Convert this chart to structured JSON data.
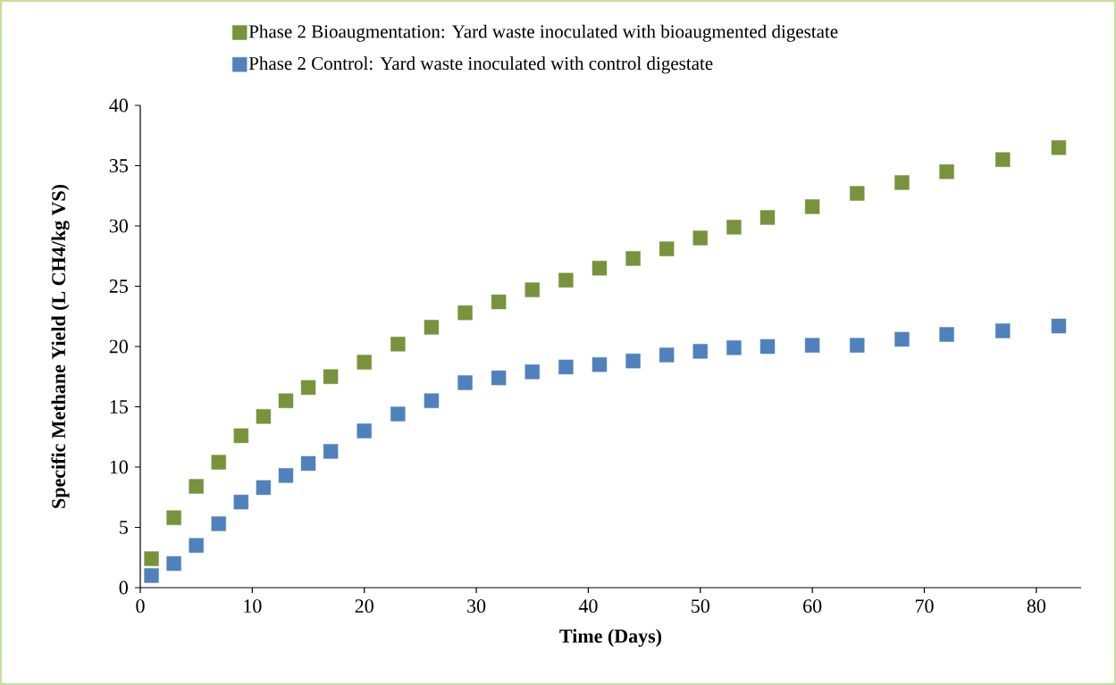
{
  "chart_data": {
    "type": "scatter",
    "xlabel": "Time (Days)",
    "ylabel": "Specific Methane Yield (L CH4/kg VS)",
    "marker": "square",
    "legend": "top",
    "grid": false,
    "xlim": [
      0,
      84
    ],
    "xticks": [
      0,
      10,
      20,
      30,
      40,
      50,
      60,
      70,
      80
    ],
    "ylim": [
      0,
      40
    ],
    "yticks": [
      0,
      5,
      10,
      15,
      20,
      25,
      30,
      35,
      40
    ],
    "series": [
      {
        "name": "Phase 2 Bioaugmentation: Yard waste inoculated with bioaugmented digestate",
        "color": "#77933c",
        "x": [
          1,
          3,
          5,
          7,
          9,
          11,
          13,
          15,
          17,
          20,
          23,
          26,
          29,
          32,
          35,
          38,
          41,
          44,
          47,
          50,
          53,
          56,
          60,
          64,
          68,
          72,
          77,
          82
        ],
        "values": [
          2.4,
          5.8,
          8.4,
          10.4,
          12.6,
          14.2,
          15.5,
          16.6,
          17.5,
          18.7,
          20.2,
          21.6,
          22.8,
          23.7,
          24.7,
          25.5,
          26.5,
          27.3,
          28.1,
          29.0,
          29.9,
          30.7,
          31.6,
          32.7,
          33.6,
          34.5,
          35.5,
          36.5
        ]
      },
      {
        "name": "Phase 2 Control: Yard waste inoculated with control digestate",
        "color": "#4f81bd",
        "x": [
          1,
          3,
          5,
          7,
          9,
          11,
          13,
          15,
          17,
          20,
          23,
          26,
          29,
          32,
          35,
          38,
          41,
          44,
          47,
          50,
          53,
          56,
          60,
          64,
          68,
          72,
          77,
          82
        ],
        "values": [
          1.0,
          2.0,
          3.5,
          5.3,
          7.1,
          8.3,
          9.3,
          10.3,
          11.3,
          13.0,
          14.4,
          15.5,
          17.0,
          17.4,
          17.9,
          18.3,
          18.5,
          18.8,
          19.3,
          19.6,
          19.9,
          20.0,
          20.1,
          20.1,
          20.6,
          21.0,
          21.3,
          21.7
        ]
      }
    ]
  }
}
